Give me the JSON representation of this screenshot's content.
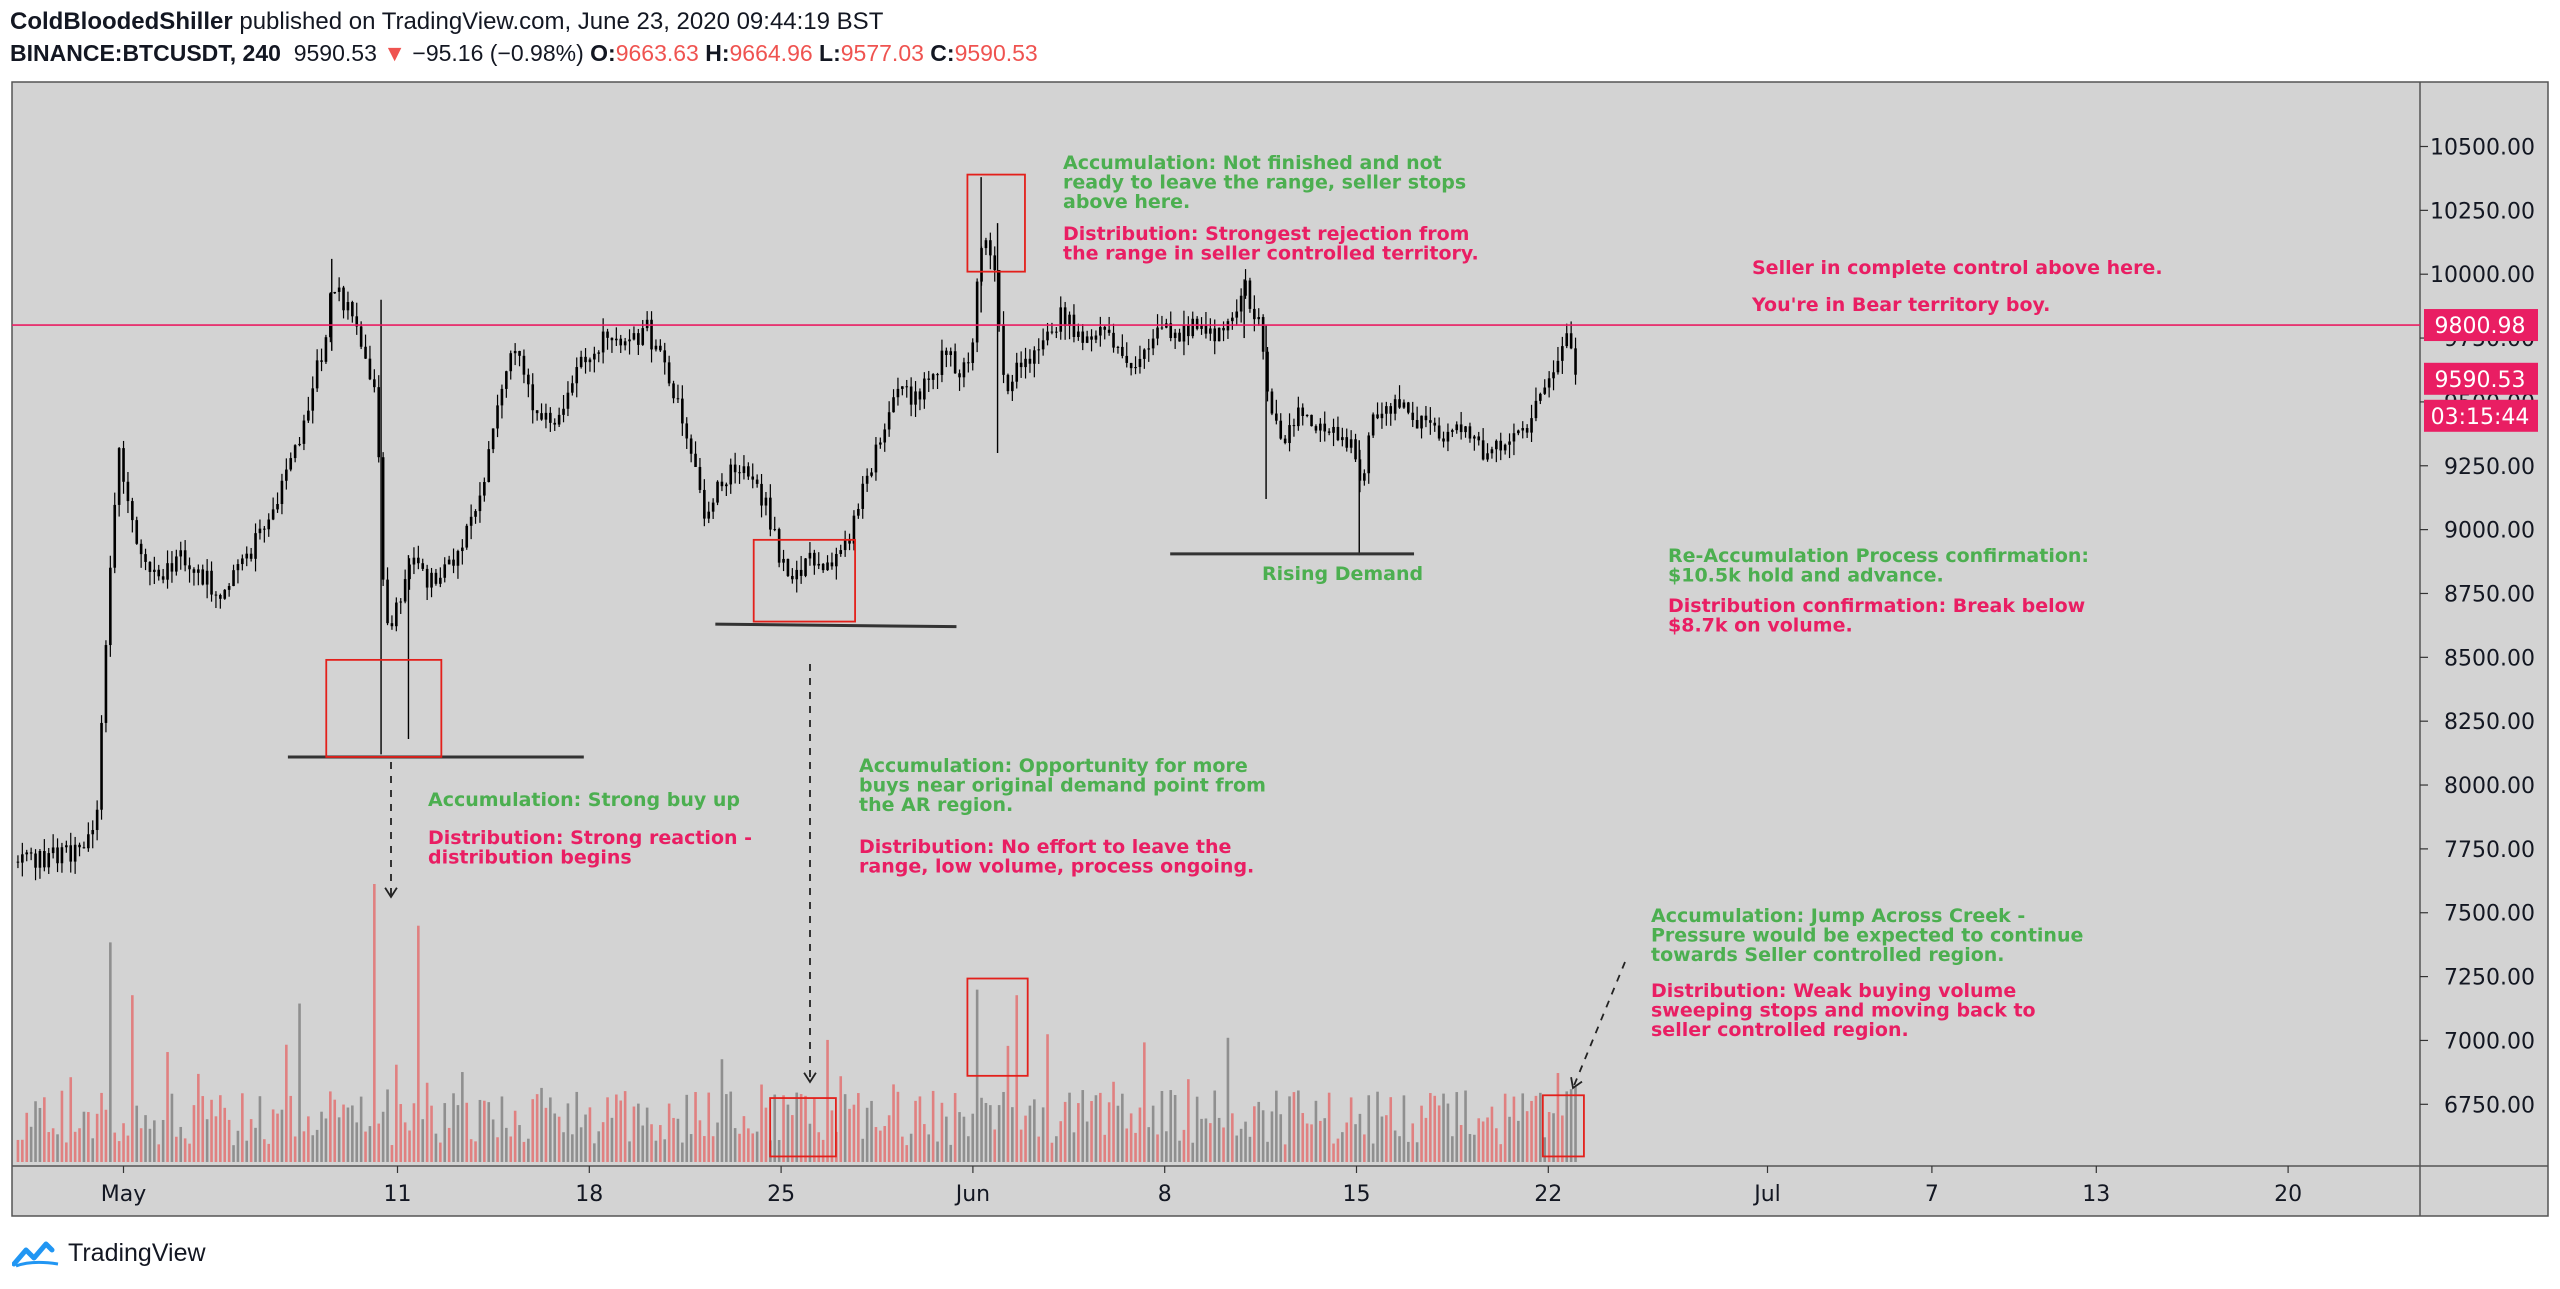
{
  "header": {
    "author": "ColdBloodedShiller",
    "published": "published on TradingView.com, June 23, 2020 09:44:19 BST",
    "symbol": "BINANCE:BTCUSDT, 240",
    "last": "9590.53",
    "arrow": "▼",
    "change": "−95.16 (−0.98%)",
    "o_label": "O:",
    "o_value": "9663.63",
    "h_label": "H:",
    "h_value": "9664.96",
    "l_label": "L:",
    "l_value": "9577.03",
    "c_label": "C:",
    "c_value": "9590.53"
  },
  "footer": {
    "brand": "TradingView",
    "logo_icon": "tradingview-logo-icon"
  },
  "colors": {
    "green": "#4caf50",
    "pink": "#e91e63",
    "red": "#ef5350",
    "box": "#e3201b",
    "plot_bg": "#d3d3d3",
    "candle": "#000000",
    "vol_up": "#8f8f8f",
    "vol_down": "#e08080"
  },
  "chart_data": {
    "type": "candlestick",
    "symbol": "BINANCE:BTCUSDT",
    "interval": "240",
    "grid": false,
    "yaxis": {
      "min": 6520,
      "max": 10710,
      "ticks": [
        10500,
        10250,
        10000,
        9750,
        9500,
        9250,
        9000,
        8750,
        8500,
        8250,
        8000,
        7750,
        7500,
        7250,
        7000,
        6750
      ],
      "tick_labels": [
        "10500.00",
        "10250.00",
        "10000.00",
        "9750.00",
        "9500.00",
        "9250.00",
        "9000.00",
        "8750.00",
        "8500.00",
        "8250.00",
        "8000.00",
        "7750.00",
        "7500.00",
        "7250.00",
        "7000.00",
        "6750.00"
      ]
    },
    "xaxis": {
      "min_day": -2.5,
      "max_day": 53.5,
      "ticks": [
        {
          "day": 0,
          "label": "May"
        },
        {
          "day": 10,
          "label": "11"
        },
        {
          "day": 17,
          "label": "18"
        },
        {
          "day": 24,
          "label": "25"
        },
        {
          "day": 31,
          "label": "Jun"
        },
        {
          "day": 38,
          "label": "8"
        },
        {
          "day": 45,
          "label": "15"
        },
        {
          "day": 52,
          "label": "22"
        },
        {
          "day": 60,
          "label": "Jul"
        },
        {
          "day": 66,
          "label": "7"
        },
        {
          "day": 72,
          "label": "13"
        },
        {
          "day": 79,
          "label": "20"
        }
      ]
    },
    "price_path": [
      [
        -3.6,
        7700
      ],
      [
        -1.5,
        7750
      ],
      [
        -1.0,
        7900
      ],
      [
        -0.6,
        8750
      ],
      [
        -0.2,
        9300
      ],
      [
        0.3,
        9000
      ],
      [
        1.0,
        8800
      ],
      [
        2.0,
        8900
      ],
      [
        3.5,
        8750
      ],
      [
        4.5,
        8900
      ],
      [
        5.5,
        9100
      ],
      [
        6.5,
        9400
      ],
      [
        7.2,
        9700
      ],
      [
        7.6,
        9950
      ],
      [
        8.3,
        9850
      ],
      [
        8.8,
        9700
      ],
      [
        9.2,
        9500
      ],
      [
        9.5,
        8600
      ],
      [
        10.0,
        8700
      ],
      [
        10.5,
        8900
      ],
      [
        11.0,
        8800
      ],
      [
        11.8,
        8850
      ],
      [
        12.6,
        9000
      ],
      [
        13.2,
        9250
      ],
      [
        13.8,
        9600
      ],
      [
        14.3,
        9700
      ],
      [
        14.8,
        9500
      ],
      [
        15.5,
        9400
      ],
      [
        16.2,
        9550
      ],
      [
        16.9,
        9700
      ],
      [
        17.6,
        9750
      ],
      [
        18.3,
        9700
      ],
      [
        19.0,
        9800
      ],
      [
        19.6,
        9650
      ],
      [
        20.2,
        9500
      ],
      [
        20.7,
        9300
      ],
      [
        21.2,
        9050
      ],
      [
        21.8,
        9200
      ],
      [
        22.6,
        9250
      ],
      [
        23.4,
        9100
      ],
      [
        24.0,
        8850
      ],
      [
        24.6,
        8820
      ],
      [
        25.2,
        8900
      ],
      [
        25.8,
        8850
      ],
      [
        26.4,
        8950
      ],
      [
        27.0,
        9200
      ],
      [
        27.6,
        9350
      ],
      [
        28.2,
        9550
      ],
      [
        28.8,
        9500
      ],
      [
        29.4,
        9600
      ],
      [
        30.0,
        9700
      ],
      [
        30.5,
        9600
      ],
      [
        30.9,
        9700
      ],
      [
        31.3,
        10150
      ],
      [
        31.7,
        10050
      ],
      [
        32.1,
        9550
      ],
      [
        32.8,
        9650
      ],
      [
        33.5,
        9700
      ],
      [
        34.2,
        9850
      ],
      [
        34.9,
        9750
      ],
      [
        35.6,
        9800
      ],
      [
        36.3,
        9700
      ],
      [
        37.0,
        9650
      ],
      [
        37.7,
        9800
      ],
      [
        38.4,
        9750
      ],
      [
        39.1,
        9800
      ],
      [
        39.8,
        9750
      ],
      [
        40.4,
        9850
      ],
      [
        40.9,
        9950
      ],
      [
        41.4,
        9800
      ],
      [
        41.8,
        9450
      ],
      [
        42.3,
        9350
      ],
      [
        42.9,
        9450
      ],
      [
        43.6,
        9400
      ],
      [
        44.3,
        9350
      ],
      [
        44.8,
        9350
      ],
      [
        45.1,
        9150
      ],
      [
        45.5,
        9450
      ],
      [
        46.1,
        9500
      ],
      [
        46.8,
        9450
      ],
      [
        47.5,
        9400
      ],
      [
        48.2,
        9350
      ],
      [
        48.9,
        9400
      ],
      [
        49.6,
        9300
      ],
      [
        50.3,
        9350
      ],
      [
        51.0,
        9380
      ],
      [
        51.6,
        9500
      ],
      [
        52.2,
        9620
      ],
      [
        52.6,
        9760
      ],
      [
        53.0,
        9590
      ]
    ],
    "horizontal_lines": [
      {
        "price": 9800.98,
        "label": "9800.98",
        "color": "#e91e63"
      }
    ],
    "price_labels": [
      {
        "price": 9800.98,
        "label": "9800.98"
      },
      {
        "price": 9590.53,
        "label": "9590.53"
      },
      {
        "label": "03:15:44"
      }
    ],
    "support_lines": [
      {
        "day_start": 6.0,
        "day_end": 16.8,
        "price": 8110
      },
      {
        "day_start": 21.6,
        "day_end": 30.4,
        "price": 8630
      },
      {
        "day_start": 38.2,
        "day_end": 47.1,
        "price": 8905
      }
    ],
    "price_boxes": [
      {
        "day_start": 7.4,
        "day_end": 11.6,
        "price_low": 8110,
        "price_high": 8490
      },
      {
        "day_start": 23.0,
        "day_end": 26.7,
        "price_low": 8640,
        "price_high": 8960
      },
      {
        "day_start": 30.8,
        "day_end": 32.9,
        "price_low": 10010,
        "price_high": 10390
      }
    ],
    "volume_boxes": [
      {
        "day_start": 23.6,
        "day_end": 26.0,
        "pane_level_low": 0.02,
        "pane_level_high": 0.23
      },
      {
        "day_start": 30.8,
        "day_end": 33.0,
        "pane_level_low": 0.31,
        "pane_level_high": 0.66
      },
      {
        "day_start": 51.8,
        "day_end": 53.3,
        "pane_level_low": 0.02,
        "pane_level_high": 0.24
      }
    ],
    "volume_spikes": [
      {
        "day": 9.1,
        "level": 1.0,
        "side": "down"
      },
      {
        "day": 9.9,
        "level": 0.35,
        "side": "down"
      },
      {
        "day": 10.7,
        "level": 0.85,
        "side": "down"
      },
      {
        "day": 31.1,
        "level": 0.62,
        "side": "up"
      },
      {
        "day": 32.5,
        "level": 0.6,
        "side": "down"
      },
      {
        "day": -0.6,
        "level": 0.79,
        "side": "up"
      },
      {
        "day": 0.2,
        "level": 0.6,
        "side": "down"
      },
      {
        "day": 6.3,
        "level": 0.57,
        "side": "up"
      }
    ],
    "annotations": [
      {
        "id": "acc_top",
        "color": "green",
        "lines": [
          "Accumulation: Not finished and not",
          "ready to leave the range, seller stops",
          "above here."
        ]
      },
      {
        "id": "dist_top",
        "color": "pink",
        "lines": [
          "Distribution: Strongest rejection from",
          "the range in seller controlled territory."
        ]
      },
      {
        "id": "seller_control",
        "color": "pink",
        "lines": [
          "Seller in complete control above here."
        ]
      },
      {
        "id": "bear_territory",
        "color": "pink",
        "lines": [
          "You're in Bear territory boy."
        ]
      },
      {
        "id": "rising_demand",
        "color": "green",
        "lines": [
          "Rising Demand"
        ]
      },
      {
        "id": "reacc",
        "color": "green",
        "lines": [
          "Re-Accumulation Process confirmation:",
          "$10.5k hold and advance."
        ]
      },
      {
        "id": "dist_confirm",
        "color": "pink",
        "lines": [
          "Distribution confirmation: Break below",
          "$8.7k on volume."
        ]
      },
      {
        "id": "acc_buyup",
        "color": "green",
        "lines": [
          "Accumulation: Strong buy up"
        ]
      },
      {
        "id": "dist_reaction",
        "color": "pink",
        "lines": [
          "Distribution: Strong reaction -",
          "distribution begins"
        ]
      },
      {
        "id": "acc_opportunity",
        "color": "green",
        "lines": [
          "Accumulation: Opportunity for more",
          "buys near original demand point from",
          "the AR region."
        ]
      },
      {
        "id": "dist_noeffort",
        "color": "pink",
        "lines": [
          "Distribution: No effort to leave the",
          "range, low volume, process ongoing."
        ]
      },
      {
        "id": "acc_jac",
        "color": "green",
        "lines": [
          "Accumulation: Jump Across Creek -",
          "Pressure would be expected to continue",
          "towards Seller controlled region."
        ]
      },
      {
        "id": "dist_weak",
        "color": "pink",
        "lines": [
          "Distribution: Weak buying volume",
          "sweeping stops and moving back to",
          "seller controlled region."
        ]
      }
    ]
  }
}
